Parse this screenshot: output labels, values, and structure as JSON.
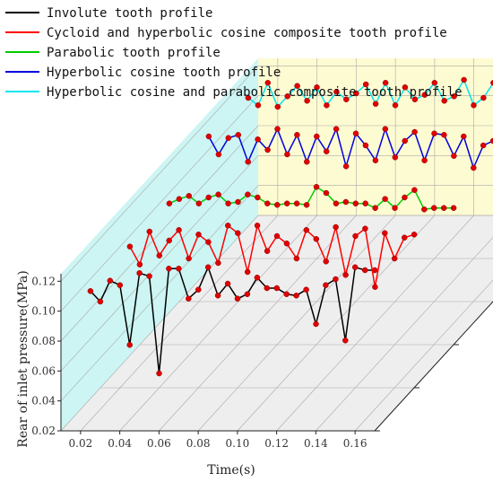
{
  "chart_data": {
    "type": "line",
    "subtype": "3d-waterfall",
    "xlabel": "Time(s)",
    "ylabel": "Rear of inlet pressure(MPa)",
    "x_ticks": [
      "0.02",
      "0.04",
      "0.06",
      "0.08",
      "0.10",
      "0.12",
      "0.14",
      "0.16"
    ],
    "y_ticks": [
      "0.02",
      "0.04",
      "0.06",
      "0.08",
      "0.10",
      "0.12"
    ],
    "xlim": [
      0.01,
      0.17
    ],
    "ylim": [
      0.02,
      0.125
    ],
    "legend_position": "top-left",
    "x": [
      0.015,
      0.02,
      0.025,
      0.03,
      0.035,
      0.04,
      0.045,
      0.05,
      0.055,
      0.06,
      0.065,
      0.07,
      0.075,
      0.08,
      0.085,
      0.09,
      0.095,
      0.1,
      0.105,
      0.11,
      0.115,
      0.12,
      0.125,
      0.13,
      0.135,
      0.14,
      0.145,
      0.15,
      0.155,
      0.16
    ],
    "series": [
      {
        "name": "Involute tooth profile",
        "color": "#000000",
        "values": [
          0.099,
          0.092,
          0.106,
          0.103,
          0.063,
          0.111,
          0.109,
          0.044,
          0.114,
          0.114,
          0.094,
          0.1,
          0.115,
          0.096,
          0.104,
          0.094,
          0.097,
          0.108,
          0.101,
          0.101,
          0.097,
          0.096,
          0.1,
          0.077,
          0.103,
          0.107,
          0.066,
          0.115,
          0.113,
          0.113
        ]
      },
      {
        "name": "Cycloid and hyperbolic cosine composite tooth profile",
        "color": "#ff0000",
        "values": [
          0.1,
          0.088,
          0.11,
          0.094,
          0.104,
          0.111,
          0.092,
          0.108,
          0.103,
          0.089,
          0.114,
          0.109,
          0.083,
          0.114,
          0.097,
          0.107,
          0.102,
          0.092,
          0.111,
          0.105,
          0.09,
          0.113,
          0.081,
          0.107,
          0.112,
          0.073,
          0.109,
          0.092,
          0.106,
          0.108
        ]
      },
      {
        "name": "Parabolic tooth profile",
        "color": "#00cc00",
        "values": [
          0.1,
          0.103,
          0.105,
          0.1,
          0.104,
          0.106,
          0.1,
          0.101,
          0.106,
          0.104,
          0.1,
          0.099,
          0.1,
          0.1,
          0.099,
          0.111,
          0.107,
          0.1,
          0.101,
          0.1,
          0.1,
          0.097,
          0.103,
          0.097,
          0.104,
          0.109,
          0.096,
          0.097,
          0.097,
          0.097
        ]
      },
      {
        "name": "Hyperbolic cosine tooth profile",
        "color": "#0000dd",
        "values": [
          0.116,
          0.104,
          0.115,
          0.117,
          0.099,
          0.114,
          0.107,
          0.121,
          0.104,
          0.117,
          0.099,
          0.116,
          0.106,
          0.121,
          0.096,
          0.118,
          0.11,
          0.1,
          0.121,
          0.102,
          0.113,
          0.119,
          0.1,
          0.118,
          0.117,
          0.103,
          0.116,
          0.095,
          0.11,
          0.113
        ]
      },
      {
        "name": "Hyperbolic cosine and parabolic composite tooth profile",
        "color": "#00e5ee",
        "values": [
          0.113,
          0.108,
          0.123,
          0.107,
          0.114,
          0.121,
          0.111,
          0.12,
          0.108,
          0.117,
          0.112,
          0.116,
          0.122,
          0.109,
          0.123,
          0.108,
          0.12,
          0.112,
          0.115,
          0.123,
          0.111,
          0.114,
          0.125,
          0.108,
          0.113,
          0.123,
          0.111,
          0.133,
          0.116,
          0.114
        ]
      }
    ],
    "colors": {
      "side_wall": "#ccf5f3",
      "back_wall": "#fdfbd2",
      "floor": "#eeeeee",
      "marker": "#e00000"
    }
  }
}
